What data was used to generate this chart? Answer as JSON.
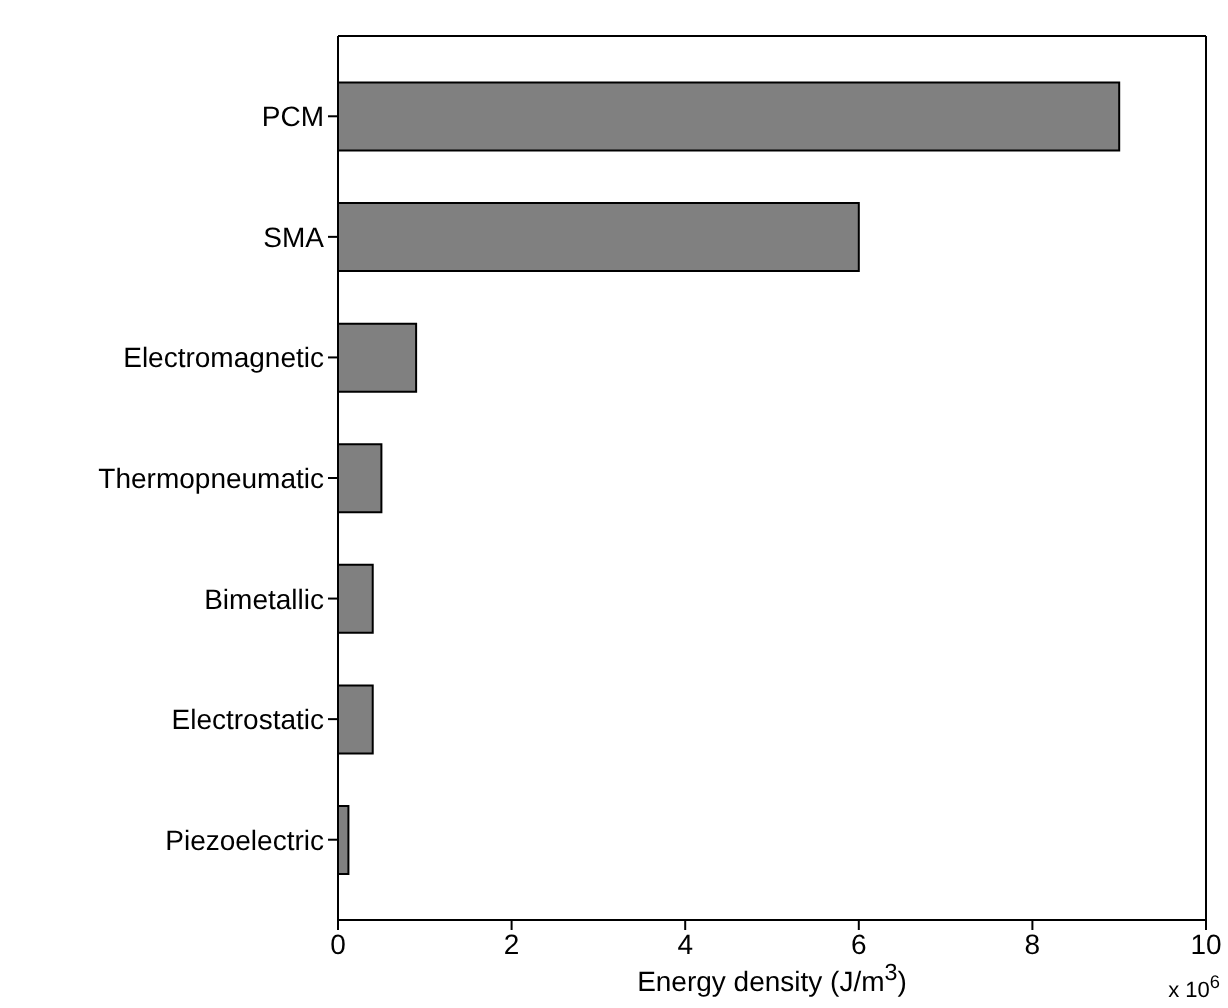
{
  "chart_data": {
    "type": "bar",
    "orientation": "horizontal",
    "xlabel": "Energy density (J/m$^{3}$)",
    "categories": [
      "PCM",
      "SMA",
      "Electromagnetic",
      "Thermopneumatic",
      "Bimetallic",
      "Electrostatic",
      "Piezoelectric"
    ],
    "values": [
      9,
      6,
      0.9,
      0.5,
      0.4,
      0.4,
      0.12
    ],
    "color": "#808080",
    "xlim": [
      0,
      10
    ],
    "xticks": [
      0,
      2,
      4,
      6,
      8,
      10
    ],
    "annotations": [
      "x 10$^{6}$"
    ]
  }
}
